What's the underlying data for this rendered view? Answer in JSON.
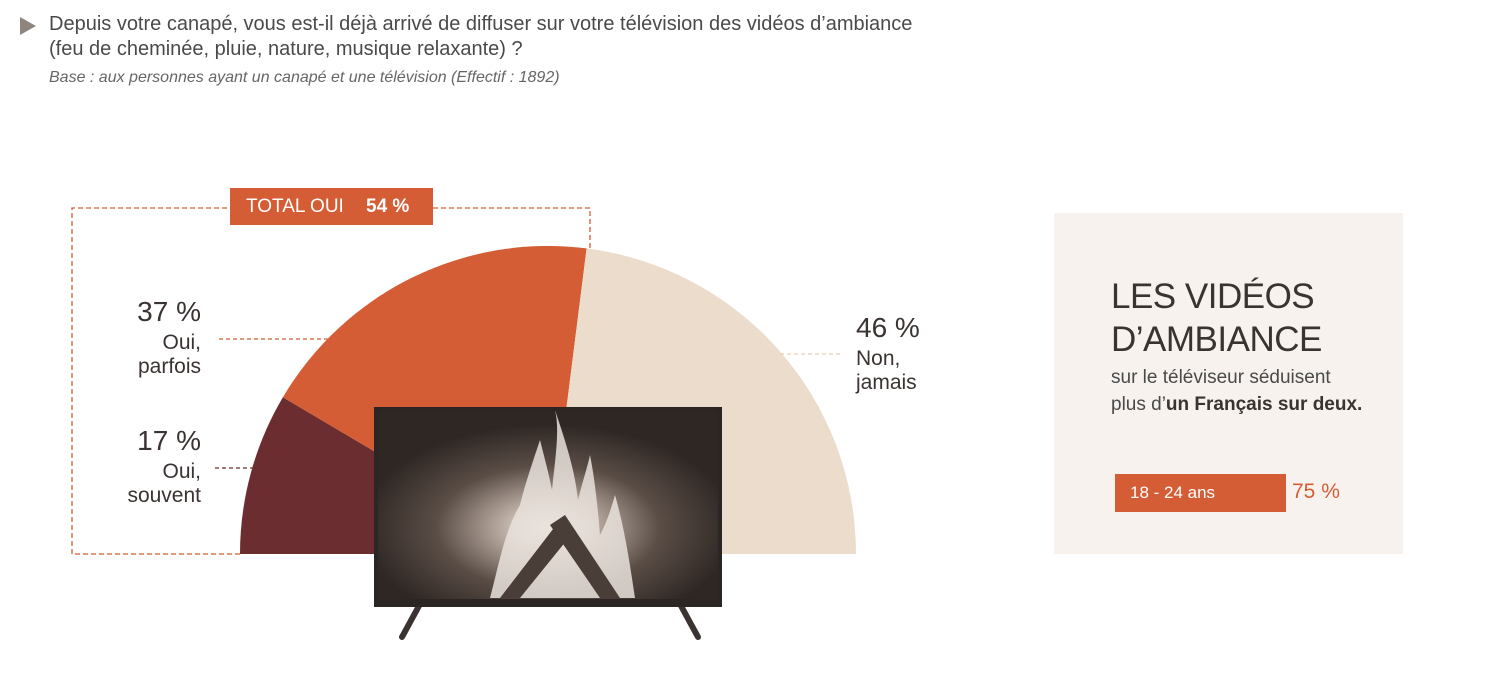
{
  "header": {
    "question_line1": "Depuis votre canapé, vous est-il déjà arrivé de diffuser sur votre télévision des vidéos d’ambiance",
    "question_line2": "(feu de cheminée, pluie, nature, musique relaxante) ?",
    "base": "Base : aux personnes ayant un canapé et une télévision (Effectif : 1892)"
  },
  "chart_data": {
    "type": "pie",
    "subtype": "half-donut",
    "total_label": "TOTAL OUI",
    "total_value": "54 %",
    "slices": [
      {
        "pct": "17 %",
        "label1": "Oui,",
        "label2": "souvent",
        "value": 17,
        "color": "#6b2d2f"
      },
      {
        "pct": "37 %",
        "label1": "Oui,",
        "label2": "parfois",
        "value": 37,
        "color": "#d45d35"
      },
      {
        "pct": "46 %",
        "label1": "Non,",
        "label2": "jamais",
        "value": 46,
        "color": "#ecdccb"
      }
    ]
  },
  "panel": {
    "title_line1": "LES VIDÉOS",
    "title_line2": "D’AMBIANCE",
    "text_line1": "sur le téléviseur séduisent",
    "text_line2_pre": "plus d’",
    "text_line2_bold": "un Français sur deux.",
    "age_label": "18 - 24 ans",
    "age_value": "75 %"
  },
  "colors": {
    "accent": "#d45d35",
    "dark": "#6b2d2f",
    "light": "#ecdccb"
  }
}
